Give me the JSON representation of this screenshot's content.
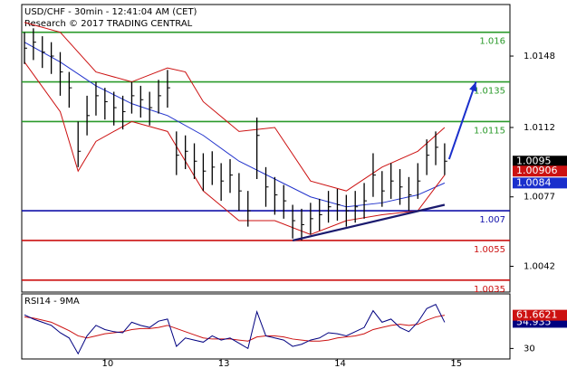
{
  "chart_data": {
    "type": "ohlc",
    "title": "USD/CHF - 30min - 12:41:04 AM (CET)",
    "subtitle": "Research © 2017 TRADING CENTRAL",
    "ylim": [
      1.0029,
      1.0174
    ],
    "yticks": [
      1.0148,
      1.0112,
      1.0077,
      1.0042
    ],
    "xlim": [
      0,
      54
    ],
    "xticks": [
      {
        "value": 9,
        "label": "10"
      },
      {
        "value": 22,
        "label": "13"
      },
      {
        "value": 35,
        "label": "14"
      },
      {
        "value": 48,
        "label": "15"
      }
    ],
    "high": [
      1.016,
      1.0162,
      1.0158,
      1.0155,
      1.015,
      1.014,
      1.0115,
      1.0128,
      1.0135,
      1.0132,
      1.013,
      1.0128,
      1.0135,
      1.0133,
      1.013,
      1.0136,
      1.0141,
      1.011,
      1.0108,
      1.0104,
      1.0099,
      1.01,
      1.0094,
      1.0096,
      1.0089,
      1.008,
      1.0117,
      1.0092,
      1.0087,
      1.0083,
      1.0073,
      1.0071,
      1.0074,
      1.0076,
      1.008,
      1.0081,
      1.0078,
      1.008,
      1.0084,
      1.0099,
      1.009,
      1.0094,
      1.0091,
      1.0087,
      1.0094,
      1.0106,
      1.011,
      1.0104
    ],
    "low": [
      1.0144,
      1.0146,
      1.0142,
      1.0139,
      1.0128,
      1.0122,
      1.0092,
      1.0108,
      1.0118,
      1.0116,
      1.0113,
      1.0111,
      1.0119,
      1.0117,
      1.0113,
      1.0119,
      1.0122,
      1.0088,
      1.0091,
      1.0086,
      1.008,
      1.0083,
      1.0075,
      1.0079,
      1.007,
      1.0062,
      1.0086,
      1.0072,
      1.0068,
      1.0066,
      1.0056,
      1.0055,
      1.0058,
      1.006,
      1.0064,
      1.0065,
      1.0062,
      1.0064,
      1.0066,
      1.0077,
      1.0072,
      1.0076,
      1.0073,
      1.007,
      1.0076,
      1.0088,
      1.0093,
      1.0088
    ],
    "close": [
      1.0152,
      1.0155,
      1.015,
      1.0148,
      1.014,
      1.0132,
      1.01,
      1.0118,
      1.0128,
      1.0125,
      1.0122,
      1.012,
      1.0128,
      1.0126,
      1.0122,
      1.0128,
      1.0132,
      1.0098,
      1.01,
      1.0095,
      1.009,
      1.0092,
      1.0085,
      1.0088,
      1.008,
      1.007,
      1.0108,
      1.0082,
      1.0078,
      1.0075,
      1.0065,
      1.0063,
      1.0066,
      1.0068,
      1.0072,
      1.0073,
      1.007,
      1.0072,
      1.0075,
      1.0088,
      1.008,
      1.0085,
      1.0082,
      1.0078,
      1.0085,
      1.0098,
      1.0102,
      1.0095
    ],
    "overlays": [
      {
        "color": "#2233cc",
        "x": [
          0,
          4,
          8,
          12,
          16,
          20,
          24,
          28,
          32,
          36,
          40,
          44,
          47
        ],
        "values": [
          1.0155,
          1.0145,
          1.0133,
          1.0124,
          1.0118,
          1.0108,
          1.0095,
          1.0086,
          1.0077,
          1.0072,
          1.0074,
          1.0078,
          1.0084
        ]
      },
      {
        "color": "#cc1111",
        "x": [
          0,
          4,
          8,
          12,
          16,
          18,
          20,
          24,
          28,
          32,
          36,
          40,
          44,
          47
        ],
        "values": [
          1.0165,
          1.016,
          1.014,
          1.0135,
          1.0142,
          1.014,
          1.0125,
          1.011,
          1.0112,
          1.0085,
          1.008,
          1.0092,
          1.01,
          1.0112
        ]
      },
      {
        "color": "#cc1111",
        "x": [
          0,
          4,
          6,
          8,
          12,
          16,
          20,
          24,
          28,
          32,
          36,
          40,
          44,
          47
        ],
        "values": [
          1.0145,
          1.012,
          1.009,
          1.0105,
          1.0115,
          1.011,
          1.008,
          1.0065,
          1.0065,
          1.0058,
          1.0065,
          1.0068,
          1.007,
          1.0088
        ]
      }
    ],
    "levels": [
      {
        "value": 1.016,
        "color": "#2a9a2a"
      },
      {
        "value": 1.0135,
        "color": "#2a9a2a"
      },
      {
        "value": 1.0115,
        "color": "#2a9a2a"
      },
      {
        "value": 1.007,
        "color": "#1010aa"
      },
      {
        "value": 1.0055,
        "color": "#cc1111"
      },
      {
        "value": 1.0035,
        "color": "#cc1111"
      }
    ],
    "trendline": {
      "x": [
        30,
        47
      ],
      "values": [
        1.0055,
        1.0073
      ]
    },
    "arrow": {
      "x": [
        47.5,
        50.5
      ],
      "values": [
        1.0096,
        1.0135
      ]
    },
    "price_tags": [
      {
        "value": 1.0095,
        "label": "1.0095",
        "color": "#000000"
      },
      {
        "value": 1.009,
        "label": "1.00906",
        "color": "#cc1111"
      },
      {
        "value": 1.0084,
        "label": "1.0084",
        "color": "#1a2fcc"
      }
    ],
    "rsi": {
      "title": "RSI14 - 9MA",
      "ylim": [
        20,
        82
      ],
      "yticks": [
        30
      ],
      "series": [
        {
          "color": "#000080",
          "values": [
            62,
            58,
            55,
            52,
            45,
            40,
            25,
            42,
            52,
            48,
            46,
            45,
            55,
            52,
            50,
            56,
            58,
            32,
            40,
            38,
            36,
            42,
            38,
            40,
            35,
            30,
            65,
            42,
            40,
            38,
            32,
            34,
            38,
            40,
            45,
            44,
            42,
            46,
            50,
            66,
            55,
            58,
            50,
            46,
            55,
            68,
            72,
            54.935
          ],
          "value_label": "54.935"
        },
        {
          "color": "#cc1111",
          "values": [
            60,
            59,
            57,
            55,
            51,
            47,
            42,
            40,
            42,
            44,
            45,
            46,
            48,
            49,
            49,
            50,
            52,
            49,
            46,
            43,
            40,
            39,
            39,
            39,
            38,
            37,
            41,
            42,
            42,
            41,
            39,
            38,
            37,
            37,
            38,
            40,
            41,
            42,
            44,
            48,
            50,
            52,
            53,
            52,
            53,
            57,
            60,
            61.6621
          ],
          "value_label": "61.6621"
        }
      ]
    }
  }
}
